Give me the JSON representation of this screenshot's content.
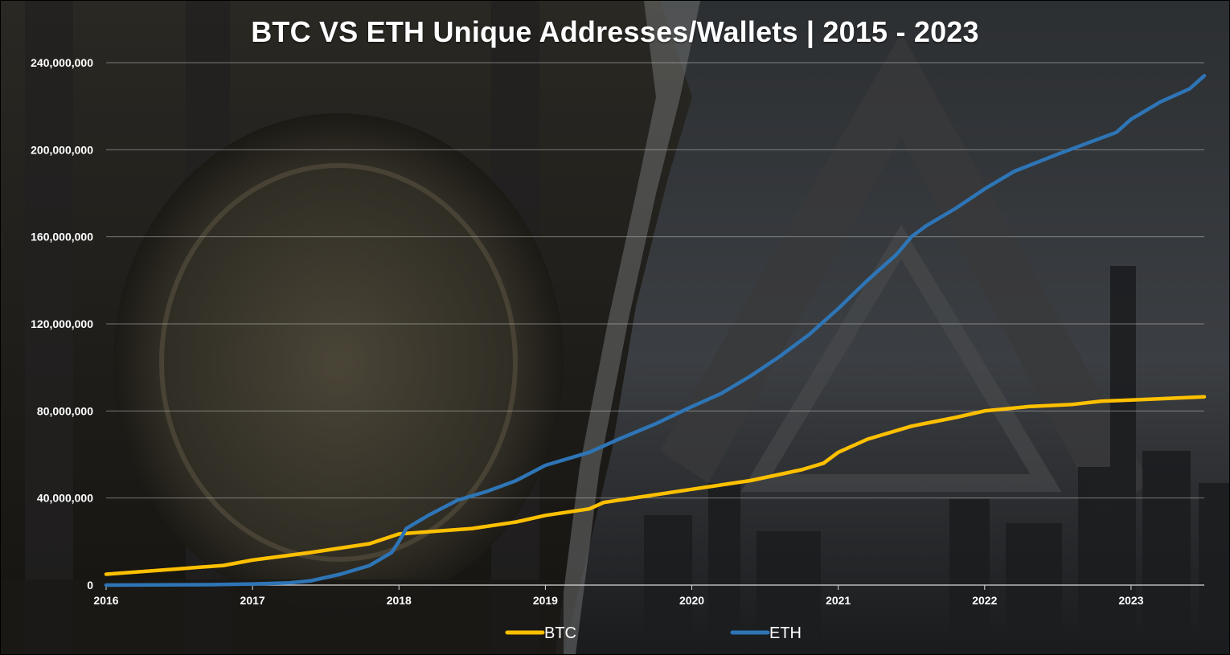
{
  "chart_data": {
    "type": "line",
    "title": "BTC VS ETH Unique Addresses/Wallets | 2015 - 2023",
    "xlabel": "",
    "ylabel": "",
    "x_ticks": [
      "2016",
      "2017",
      "2018",
      "2019",
      "2020",
      "2021",
      "2022",
      "2023"
    ],
    "y_ticks": [
      "0",
      "40,000,000",
      "80,000,000",
      "120,000,000",
      "160,000,000",
      "200,000,000",
      "240,000,000"
    ],
    "xlim": [
      2016.0,
      2023.5
    ],
    "ylim": [
      0,
      240000000
    ],
    "grid": true,
    "legend_position": "bottom",
    "series": [
      {
        "name": "BTC",
        "color": "#FFC000",
        "x": [
          2016.0,
          2016.5,
          2016.8,
          2017.0,
          2017.4,
          2017.8,
          2018.0,
          2018.5,
          2018.8,
          2019.0,
          2019.3,
          2019.4,
          2019.7,
          2020.0,
          2020.4,
          2020.75,
          2020.9,
          2021.0,
          2021.2,
          2021.5,
          2021.8,
          2022.0,
          2022.3,
          2022.6,
          2022.8,
          2023.0,
          2023.5
        ],
        "y": [
          5000000,
          7500000,
          9000000,
          11500000,
          15000000,
          19000000,
          23500000,
          26000000,
          29000000,
          32000000,
          35000000,
          38000000,
          41000000,
          44000000,
          48000000,
          53000000,
          56000000,
          61000000,
          67000000,
          73000000,
          77000000,
          80000000,
          82000000,
          83000000,
          84500000,
          85000000,
          86500000
        ]
      },
      {
        "name": "ETH",
        "color": "#2E75B6",
        "x": [
          2016.0,
          2016.7,
          2017.0,
          2017.25,
          2017.4,
          2017.6,
          2017.8,
          2017.95,
          2018.0,
          2018.05,
          2018.2,
          2018.4,
          2018.6,
          2018.8,
          2019.0,
          2019.3,
          2019.5,
          2019.75,
          2020.0,
          2020.2,
          2020.4,
          2020.6,
          2020.8,
          2021.0,
          2021.2,
          2021.4,
          2021.5,
          2021.6,
          2021.8,
          2022.0,
          2022.2,
          2022.5,
          2022.7,
          2022.9,
          2023.0,
          2023.2,
          2023.4,
          2023.5
        ],
        "y": [
          0,
          200000,
          500000,
          1000000,
          2000000,
          5000000,
          9000000,
          15000000,
          20000000,
          26000000,
          32000000,
          39000000,
          43000000,
          48000000,
          55000000,
          61000000,
          67000000,
          74000000,
          82000000,
          88000000,
          96000000,
          105000000,
          115000000,
          127000000,
          140000000,
          152000000,
          160000000,
          165000000,
          173000000,
          182000000,
          190000000,
          198000000,
          203000000,
          208000000,
          214000000,
          222000000,
          228000000,
          234000000
        ]
      }
    ]
  }
}
